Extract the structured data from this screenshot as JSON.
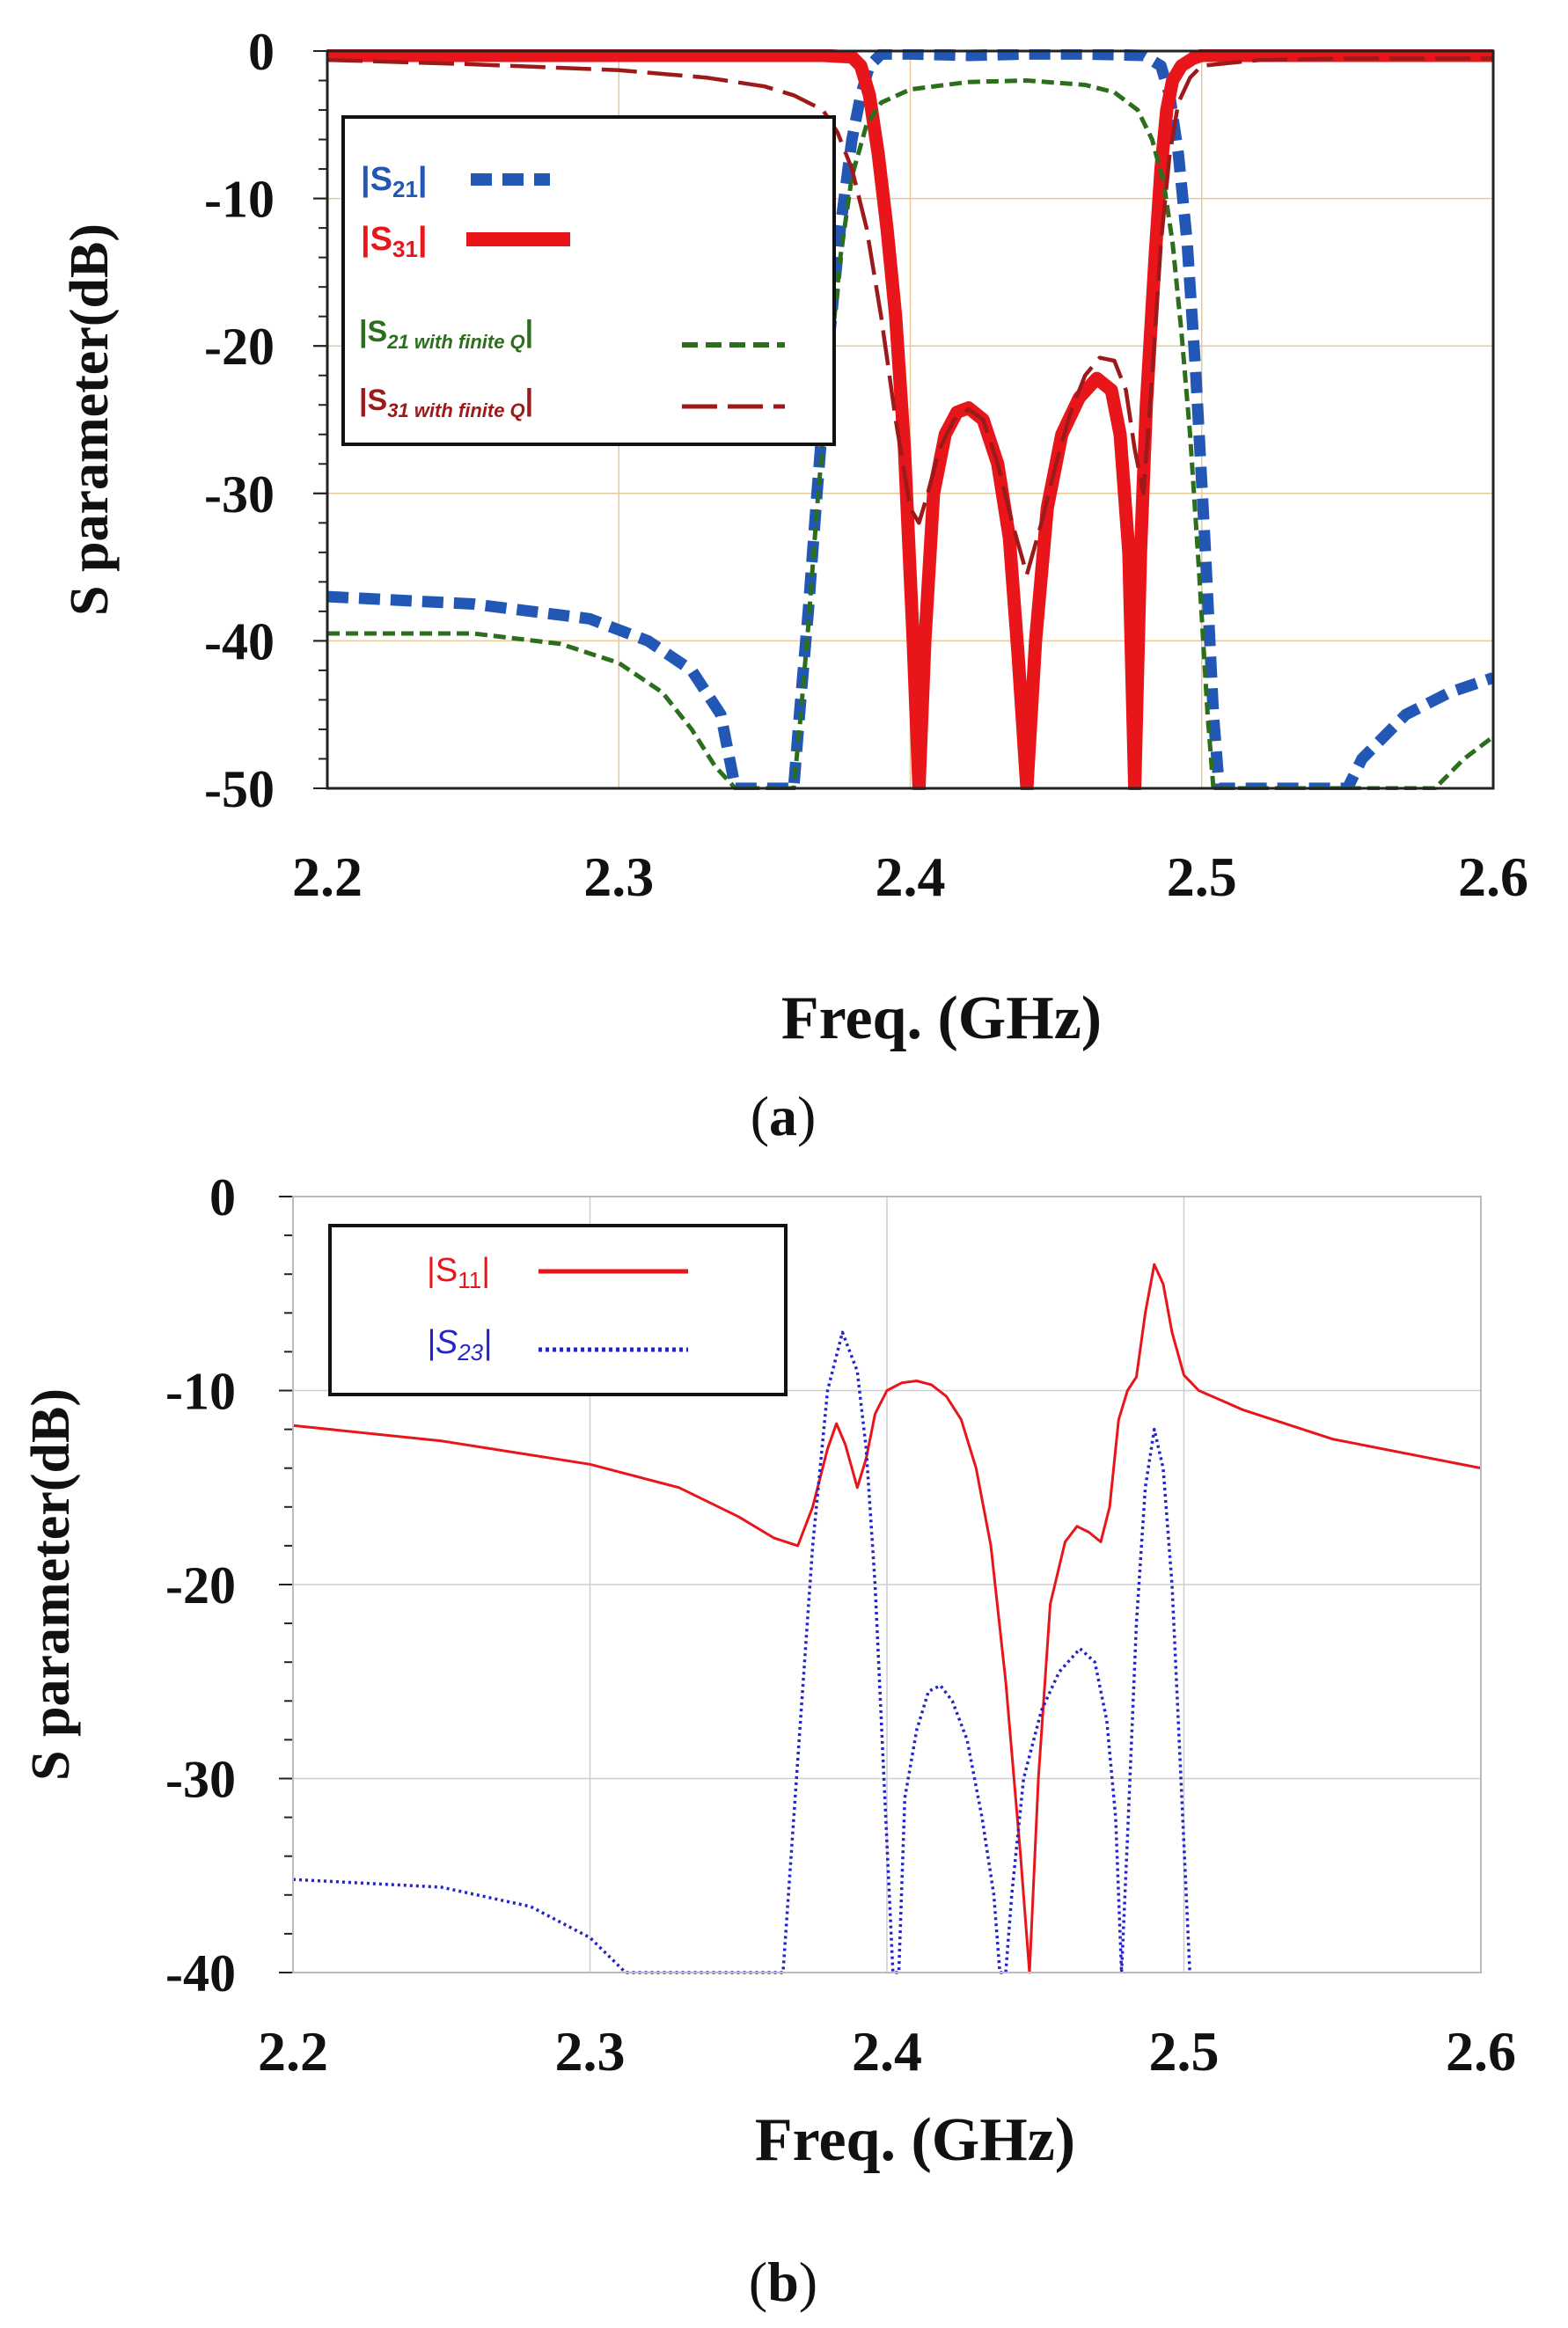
{
  "chart_data": [
    {
      "id": "a",
      "type": "line",
      "caption_open": "(",
      "caption_letter": "a",
      "caption_close": ")",
      "xlabel": "Freq. (GHz)",
      "ylabel": "S parameter(dB)",
      "xlim": [
        2.2,
        2.6
      ],
      "ylim": [
        -50,
        0
      ],
      "xticks": [
        "2.2",
        "2.3",
        "2.4",
        "2.5",
        "2.6"
      ],
      "xtick_values": [
        2.2,
        2.3,
        2.4,
        2.5,
        2.6
      ],
      "yticks": [
        "0",
        "-10",
        "-20",
        "-30",
        "-40",
        "-50"
      ],
      "ytick_values": [
        0,
        -10,
        -20,
        -30,
        -40,
        -50
      ],
      "grid": true,
      "legend_position": "top-left",
      "series": [
        {
          "name": "|S21|",
          "legend_main": "|S",
          "legend_sub": "21",
          "legend_end": "|",
          "color": "#2257b5",
          "style": "bold-dash",
          "x": [
            2.2,
            2.25,
            2.29,
            2.31,
            2.325,
            2.335,
            2.34,
            2.36,
            2.362,
            2.365,
            2.368,
            2.372,
            2.376,
            2.38,
            2.383,
            2.386,
            2.39,
            2.4,
            2.42,
            2.44,
            2.46,
            2.48,
            2.486,
            2.489,
            2.492,
            2.495,
            2.498,
            2.501,
            2.504,
            2.506,
            2.55,
            2.555,
            2.57,
            2.585,
            2.6
          ],
          "y": [
            -37,
            -37.5,
            -38.5,
            -40,
            -42,
            -45,
            -50,
            -50,
            -45,
            -38,
            -30,
            -20,
            -12,
            -6,
            -3,
            -1,
            -0.2,
            -0.2,
            -0.3,
            -0.2,
            -0.2,
            -0.3,
            -1,
            -3,
            -7,
            -13,
            -22,
            -33,
            -45,
            -50,
            -50,
            -48,
            -45,
            -43.5,
            -42.5
          ]
        },
        {
          "name": "|S31|",
          "legend_main": "|S",
          "legend_sub": "31",
          "legend_end": "|",
          "color": "#e8161b",
          "style": "bold-solid",
          "x": [
            2.2,
            2.3,
            2.35,
            2.37,
            2.38,
            2.383,
            2.386,
            2.389,
            2.392,
            2.395,
            2.398,
            2.401,
            2.403,
            2.405,
            2.408,
            2.412,
            2.416,
            2.42,
            2.425,
            2.43,
            2.434,
            2.437,
            2.44,
            2.443,
            2.447,
            2.452,
            2.458,
            2.464,
            2.469,
            2.472,
            2.475,
            2.477,
            2.479,
            2.481,
            2.484,
            2.486,
            2.488,
            2.49,
            2.493,
            2.497,
            2.5,
            2.51,
            2.55,
            2.6
          ],
          "y": [
            -0.3,
            -0.3,
            -0.3,
            -0.3,
            -0.4,
            -1,
            -3,
            -7,
            -12,
            -18,
            -27,
            -40,
            -50,
            -40,
            -30,
            -26,
            -24.5,
            -24.2,
            -25,
            -28,
            -33,
            -41,
            -50,
            -40,
            -31,
            -26,
            -23.5,
            -22.2,
            -23,
            -26,
            -34,
            -50,
            -34,
            -24,
            -14,
            -8,
            -4,
            -2,
            -1,
            -0.5,
            -0.3,
            -0.3,
            -0.3,
            -0.3
          ]
        },
        {
          "name": "|S21 with finite Q|",
          "legend_main": "|S",
          "legend_sub": "21 with finite Q",
          "legend_end": "|",
          "color": "#2b6e1c",
          "style": "dash",
          "x": [
            2.2,
            2.25,
            2.28,
            2.3,
            2.315,
            2.325,
            2.333,
            2.34,
            2.36,
            2.362,
            2.365,
            2.368,
            2.372,
            2.376,
            2.38,
            2.385,
            2.39,
            2.4,
            2.42,
            2.44,
            2.46,
            2.47,
            2.478,
            2.483,
            2.487,
            2.49,
            2.493,
            2.496,
            2.499,
            2.502,
            2.504,
            2.58,
            2.585,
            2.59,
            2.6
          ],
          "y": [
            -39.5,
            -39.5,
            -40.2,
            -41.5,
            -43.5,
            -46,
            -48.5,
            -50,
            -50,
            -46,
            -39,
            -31,
            -22,
            -14,
            -8.5,
            -5,
            -3.5,
            -2.6,
            -2.1,
            -2,
            -2.3,
            -2.8,
            -4,
            -6,
            -9,
            -13,
            -19,
            -26,
            -35,
            -45,
            -50,
            -50,
            -49,
            -48,
            -46.5
          ]
        },
        {
          "name": "|S31 with finite Q|",
          "legend_main": "|S",
          "legend_sub": "31 with finite Q",
          "legend_end": "|",
          "color": "#9e1a1a",
          "style": "long-dash",
          "x": [
            2.2,
            2.25,
            2.3,
            2.33,
            2.35,
            2.36,
            2.37,
            2.375,
            2.38,
            2.385,
            2.39,
            2.395,
            2.4,
            2.403,
            2.406,
            2.41,
            2.415,
            2.42,
            2.425,
            2.43,
            2.435,
            2.44,
            2.445,
            2.45,
            2.455,
            2.46,
            2.465,
            2.47,
            2.474,
            2.477,
            2.48,
            2.483,
            2.486,
            2.489,
            2.492,
            2.496,
            2.5,
            2.52,
            2.55,
            2.6
          ],
          "y": [
            -0.6,
            -0.9,
            -1.3,
            -1.8,
            -2.4,
            -3,
            -4,
            -5.5,
            -8,
            -12,
            -18,
            -25,
            -31,
            -32,
            -30,
            -27,
            -25,
            -24.3,
            -25,
            -28,
            -32,
            -35.5,
            -32,
            -28,
            -24.5,
            -22,
            -20.8,
            -21,
            -23,
            -27,
            -30,
            -22,
            -13,
            -7,
            -3.5,
            -1.8,
            -1,
            -0.6,
            -0.5,
            -0.5
          ]
        }
      ]
    },
    {
      "id": "b",
      "type": "line",
      "caption_open": "(",
      "caption_letter": "b",
      "caption_close": ")",
      "xlabel": "Freq. (GHz)",
      "ylabel": "S parameter(dB)",
      "xlim": [
        2.2,
        2.6
      ],
      "ylim": [
        -40,
        0
      ],
      "xticks": [
        "2.2",
        "2.3",
        "2.4",
        "2.5",
        "2.6"
      ],
      "xtick_values": [
        2.2,
        2.3,
        2.4,
        2.5,
        2.6
      ],
      "yticks": [
        "0",
        "-10",
        "-20",
        "-30",
        "-40"
      ],
      "ytick_values": [
        0,
        -10,
        -20,
        -30,
        -40
      ],
      "grid": true,
      "legend_position": "top-left",
      "series": [
        {
          "name": "|S11|",
          "legend_main": "|S",
          "legend_sub": "11",
          "legend_end": "|",
          "color": "#e8161b",
          "style": "solid",
          "x": [
            2.2,
            2.25,
            2.3,
            2.33,
            2.35,
            2.362,
            2.37,
            2.375,
            2.38,
            2.383,
            2.386,
            2.39,
            2.393,
            2.396,
            2.4,
            2.405,
            2.41,
            2.415,
            2.42,
            2.425,
            2.43,
            2.435,
            2.44,
            2.445,
            2.448,
            2.451,
            2.455,
            2.46,
            2.464,
            2.468,
            2.472,
            2.475,
            2.478,
            2.481,
            2.484,
            2.487,
            2.49,
            2.493,
            2.496,
            2.5,
            2.505,
            2.52,
            2.55,
            2.6
          ],
          "y": [
            -11.8,
            -12.6,
            -13.8,
            -15,
            -16.5,
            -17.6,
            -18,
            -16,
            -13,
            -11.7,
            -12.8,
            -15,
            -13.5,
            -11.2,
            -10,
            -9.6,
            -9.5,
            -9.7,
            -10.3,
            -11.5,
            -14,
            -18,
            -25,
            -34,
            -40,
            -30,
            -21,
            -17.8,
            -17,
            -17.3,
            -17.8,
            -16,
            -11.5,
            -10,
            -9.3,
            -6,
            -3.5,
            -4.5,
            -7,
            -9.2,
            -10,
            -11,
            -12.5,
            -14
          ]
        },
        {
          "name": "|S23|",
          "legend_main": "|S",
          "legend_sub": "23",
          "legend_end": "|",
          "color": "#2424cc",
          "style": "dotted",
          "x": [
            2.2,
            2.25,
            2.28,
            2.3,
            2.312,
            2.365,
            2.37,
            2.375,
            2.38,
            2.385,
            2.39,
            2.393,
            2.396,
            2.399,
            2.402,
            2.404,
            2.406,
            2.41,
            2.414,
            2.418,
            2.422,
            2.427,
            2.432,
            2.436,
            2.438,
            2.44,
            2.442,
            2.446,
            2.452,
            2.458,
            2.465,
            2.47,
            2.474,
            2.477,
            2.479,
            2.481,
            2.484,
            2.487,
            2.49,
            2.493,
            2.496,
            2.499,
            2.502
          ],
          "y": [
            -35.2,
            -35.6,
            -36.6,
            -38.2,
            -40,
            -40,
            -29,
            -18,
            -10,
            -7,
            -9,
            -13,
            -20,
            -30,
            -40,
            -40,
            -31,
            -27.5,
            -25.5,
            -25.2,
            -26,
            -28,
            -32,
            -36,
            -40,
            -40,
            -36,
            -30,
            -26.5,
            -24.5,
            -23.3,
            -24,
            -27,
            -32,
            -40,
            -33,
            -22,
            -15,
            -12,
            -14,
            -20,
            -30,
            -40
          ]
        }
      ]
    }
  ]
}
